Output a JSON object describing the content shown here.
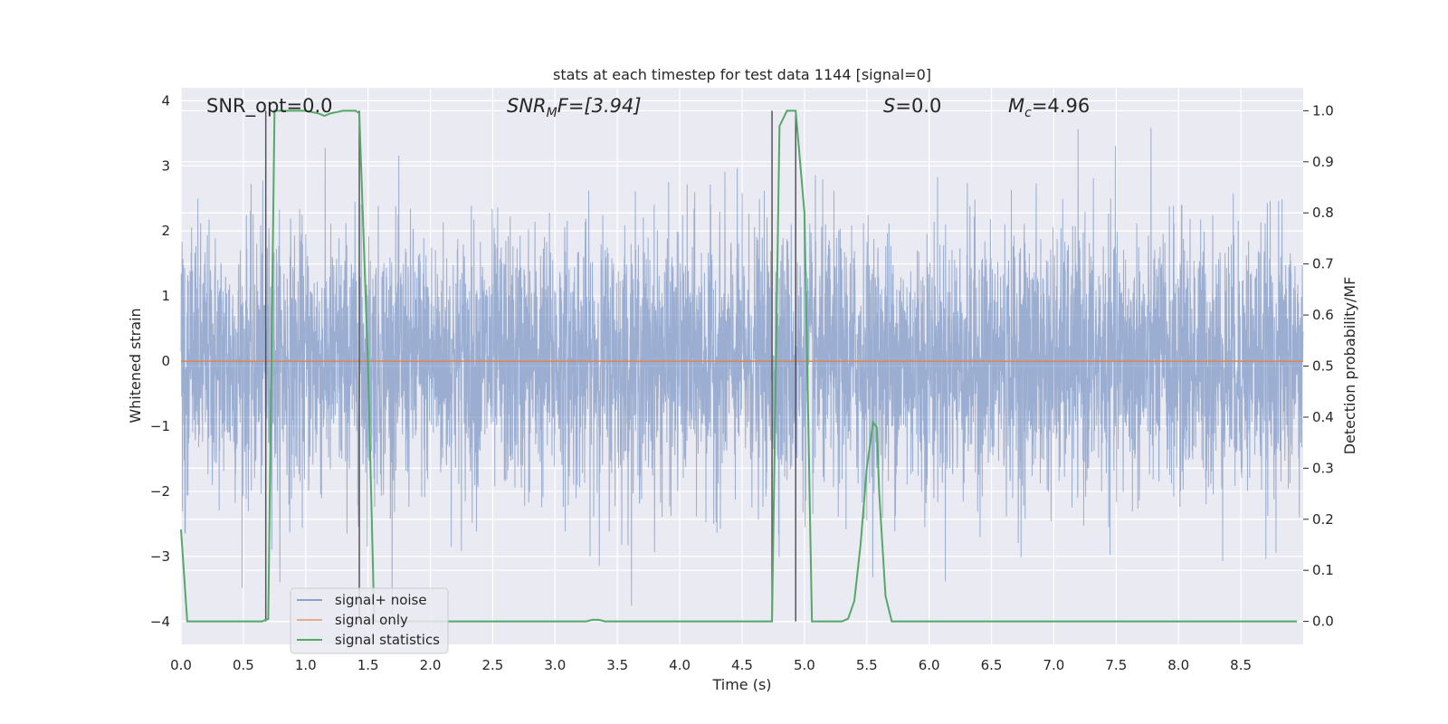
{
  "chart_data": {
    "type": "line",
    "title": "stats at each timestep for test data 1144 [signal=0]",
    "xlabel": "Time (s)",
    "ylabel": "Whitened strain",
    "y2label": "Detection probability/MF",
    "xlim": [
      0.0,
      9.0
    ],
    "ylim": [
      -4.35,
      4.2
    ],
    "y2lim": [
      -0.045,
      1.045
    ],
    "xticks": [
      0.0,
      0.5,
      1.0,
      1.5,
      2.0,
      2.5,
      3.0,
      3.5,
      4.0,
      4.5,
      5.0,
      5.5,
      6.0,
      6.5,
      7.0,
      7.5,
      8.0,
      8.5
    ],
    "xtick_labels": [
      "0.0",
      "0.5",
      "1.0",
      "1.5",
      "2.0",
      "2.5",
      "3.0",
      "3.5",
      "4.0",
      "4.5",
      "5.0",
      "5.5",
      "6.0",
      "6.5",
      "7.0",
      "7.5",
      "8.0",
      "8.5"
    ],
    "yticks": [
      -4,
      -3,
      -2,
      -1,
      0,
      1,
      2,
      3,
      4
    ],
    "ytick_labels": [
      "−4",
      "−3",
      "−2",
      "−1",
      "0",
      "1",
      "2",
      "3",
      "4"
    ],
    "y2ticks": [
      0.0,
      0.1,
      0.2,
      0.3,
      0.4,
      0.5,
      0.6,
      0.7,
      0.8,
      0.9,
      1.0
    ],
    "y2tick_labels": [
      "0.0",
      "0.1",
      "0.2",
      "0.3",
      "0.4",
      "0.5",
      "0.6",
      "0.7",
      "0.8",
      "0.9",
      "1.0"
    ],
    "grid": true,
    "legend": "lower-left",
    "annotations": {
      "snr_opt": "SNR_opt=0.0",
      "snr_mf_main": "SNR",
      "snr_mf_sub": "M",
      "snr_mf_tail": "F=[3.94]",
      "s_main": "S",
      "s_tail": "=0.0",
      "mc_main": "M",
      "mc_sub": "c",
      "mc_tail": "=4.96"
    },
    "vlines_x": [
      0.68,
      1.43,
      4.74,
      4.93
    ],
    "series": [
      {
        "name": "signal+ noise",
        "color": "#4c72b0",
        "axis": "left",
        "description_values": "whitened noise, approx. normal, spans about -3.9 to 3.6",
        "amplitude": 1.0
      },
      {
        "name": "signal only",
        "color": "#dd8452",
        "axis": "left",
        "x": [
          0.0,
          9.0
        ],
        "y": [
          0.0,
          0.0
        ]
      },
      {
        "name": "signal statistics",
        "color": "#55a868",
        "axis": "right",
        "x": [
          0.0,
          0.05,
          0.1,
          0.2,
          0.3,
          0.4,
          0.5,
          0.6,
          0.65,
          0.7,
          0.75,
          0.8,
          0.9,
          1.0,
          1.1,
          1.15,
          1.2,
          1.3,
          1.4,
          1.43,
          1.5,
          1.55,
          1.6,
          1.7,
          1.8,
          1.9,
          2.0,
          2.5,
          3.0,
          3.25,
          3.3,
          3.35,
          3.4,
          3.45,
          3.5,
          4.0,
          4.5,
          4.74,
          4.8,
          4.86,
          4.93,
          5.0,
          5.06,
          5.1,
          5.2,
          5.3,
          5.35,
          5.4,
          5.45,
          5.5,
          5.55,
          5.58,
          5.6,
          5.65,
          5.7,
          5.75,
          5.8,
          6.0,
          6.5,
          7.0,
          7.5,
          8.0,
          8.5,
          8.95
        ],
        "y": [
          0.18,
          0.0,
          0.0,
          0.0,
          0.0,
          0.0,
          0.0,
          0.0,
          0.0,
          0.005,
          1.0,
          1.0,
          1.0,
          1.0,
          0.995,
          0.99,
          0.995,
          1.0,
          1.0,
          0.995,
          0.5,
          0.0,
          0.0,
          0.0,
          0.0,
          0.0,
          0.0,
          0.0,
          0.0,
          0.0,
          0.003,
          0.003,
          0.0,
          0.0,
          0.0,
          0.0,
          0.0,
          0.0,
          0.97,
          1.0,
          1.0,
          0.8,
          0.0,
          0.0,
          0.0,
          0.0,
          0.005,
          0.04,
          0.15,
          0.3,
          0.39,
          0.38,
          0.25,
          0.05,
          0.0,
          0.0,
          0.0,
          0.0,
          0.0,
          0.0,
          0.0,
          0.0,
          0.0,
          0.0
        ]
      }
    ]
  }
}
